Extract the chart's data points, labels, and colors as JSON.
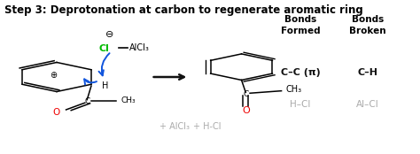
{
  "title": "Step 3: Deprotonation at carbon to regenerate aromatic ring",
  "title_fontsize": 8.5,
  "title_fontweight": "bold",
  "bg_color": "#ffffff",
  "figsize": [
    4.74,
    1.74
  ],
  "dpi": 100,
  "bonds_formed_header": "Bonds\nFormed",
  "bonds_broken_header": "Bonds\nBroken",
  "bonds_formed_1": "C–C (π)",
  "bonds_formed_2": "H–Cl",
  "bonds_broken_1": "C–H",
  "bonds_broken_2": "Al–Cl",
  "bonds_formed_1_color": "#111111",
  "bonds_formed_2_color": "#aaaaaa",
  "bonds_broken_1_color": "#111111",
  "bonds_broken_2_color": "#aaaaaa",
  "byproducts_text1": "+ AlCl₃",
  "byproducts_text2": "+ H-Cl",
  "byproducts_color": "#aaaaaa",
  "cl_color": "#00bb00",
  "o_color": "#ee0000",
  "arrow_color": "#1155dd",
  "rxn_arrow_color": "#111111"
}
